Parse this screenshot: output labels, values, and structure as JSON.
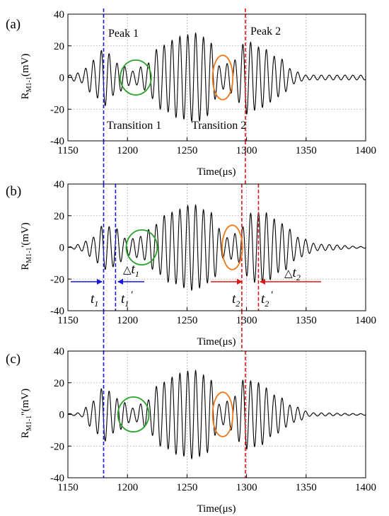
{
  "figure": {
    "panels": [
      {
        "label": "(a)",
        "ylabel": {
          "main": "R",
          "sub": "M1-1",
          "suffix": "(mV)"
        },
        "xlabel": "Time(μs)",
        "annotations": [
          {
            "text": "Peak 1",
            "color": "#1515e0"
          },
          {
            "text": "Peak 2",
            "color": "#e01515"
          },
          {
            "text": "Transition 1",
            "color": "#2aa52a"
          },
          {
            "text": "Transition 2",
            "color": "#f07818"
          }
        ]
      },
      {
        "label": "(b)",
        "ylabel": {
          "main": "R",
          "sub": "M1-1",
          "suffix": "'(mV)"
        },
        "xlabel": "Time(μs)",
        "time_marks": [
          {
            "t": "t",
            "sub": "1",
            "prime": "",
            "color": "#1515e0"
          },
          {
            "t": "t",
            "sub": "1",
            "prime": "'",
            "color": "#1515e0"
          },
          {
            "t": "t",
            "sub": "2",
            "prime": "",
            "color": "#e01515"
          },
          {
            "t": "t",
            "sub": "2",
            "prime": "'",
            "color": "#e01515"
          }
        ],
        "deltas": [
          {
            "sym": "△",
            "t": "t",
            "sub": "1",
            "color": "#1515e0"
          },
          {
            "sym": "△",
            "t": "t",
            "sub": "2",
            "color": "#e01515"
          }
        ]
      },
      {
        "label": "(c)",
        "ylabel": {
          "main": "R",
          "sub": "M1-1",
          "suffix": "''(mV)"
        },
        "xlabel": "Time(μs)"
      }
    ]
  },
  "chart_data": [
    {
      "type": "line",
      "panel": "(a)",
      "xlabel": "Time(μs)",
      "ylabel": "RM1-1(mV)",
      "xlim": [
        1150,
        1400
      ],
      "ylim": [
        -40,
        40
      ],
      "xticks": [
        1150,
        1200,
        1250,
        1300,
        1350,
        1400
      ],
      "yticks": [
        -40,
        -20,
        0,
        20,
        40
      ],
      "grid": true,
      "signal": {
        "start": 1150,
        "end": 1400,
        "carrier_period_us": 6.6,
        "envelope": [
          [
            1150,
            1.5
          ],
          [
            1160,
            3
          ],
          [
            1172,
            11
          ],
          [
            1180,
            18
          ],
          [
            1192,
            9
          ],
          [
            1205,
            4
          ],
          [
            1215,
            8
          ],
          [
            1228,
            20
          ],
          [
            1245,
            26
          ],
          [
            1258,
            28
          ],
          [
            1268,
            24
          ],
          [
            1278,
            7
          ],
          [
            1288,
            10
          ],
          [
            1300,
            23
          ],
          [
            1312,
            19
          ],
          [
            1328,
            12
          ],
          [
            1340,
            4
          ],
          [
            1350,
            1.5
          ],
          [
            1400,
            1.5
          ]
        ]
      },
      "vlines": [
        {
          "x": 1180,
          "color": "#1515e0"
        },
        {
          "x": 1299,
          "color": "#e01515"
        }
      ],
      "ellipses": [
        {
          "cx": 1207,
          "cy": 0,
          "rx": 13,
          "ry": 11,
          "color": "#2aa52a"
        },
        {
          "cx": 1280,
          "cy": 0,
          "rx": 8.5,
          "ry": 14,
          "color": "#f07818"
        }
      ]
    },
    {
      "type": "line",
      "panel": "(b)",
      "xlabel": "Time(μs)",
      "ylabel": "RM1-1'(mV)",
      "xlim": [
        1150,
        1400
      ],
      "ylim": [
        -40,
        40
      ],
      "xticks": [
        1150,
        1200,
        1250,
        1300,
        1350,
        1400
      ],
      "yticks": [
        -40,
        -20,
        0,
        20,
        40
      ],
      "grid": true,
      "signal": {
        "start": 1150,
        "end": 1400,
        "carrier_period_us": 6.6,
        "envelope": [
          [
            1150,
            0.2
          ],
          [
            1160,
            2
          ],
          [
            1170,
            6
          ],
          [
            1180,
            14
          ],
          [
            1190,
            12
          ],
          [
            1200,
            5
          ],
          [
            1212,
            7
          ],
          [
            1222,
            14
          ],
          [
            1235,
            22
          ],
          [
            1255,
            27
          ],
          [
            1270,
            22
          ],
          [
            1282,
            6
          ],
          [
            1292,
            9
          ],
          [
            1305,
            22
          ],
          [
            1315,
            22
          ],
          [
            1330,
            15
          ],
          [
            1345,
            6
          ],
          [
            1360,
            2
          ],
          [
            1400,
            0.5
          ]
        ]
      },
      "vlines": [
        {
          "x": 1180,
          "color": "#1515e0"
        },
        {
          "x": 1190,
          "color": "#1515e0"
        },
        {
          "x": 1296,
          "color": "#e01515"
        },
        {
          "x": 1310,
          "color": "#e01515"
        }
      ],
      "ellipses": [
        {
          "cx": 1212,
          "cy": 0,
          "rx": 13,
          "ry": 11,
          "color": "#2aa52a"
        },
        {
          "cx": 1288,
          "cy": 0,
          "rx": 8.5,
          "ry": 14,
          "color": "#f07818"
        }
      ]
    },
    {
      "type": "line",
      "panel": "(c)",
      "xlabel": "Time(μs)",
      "ylabel": "RM1-1''(mV)",
      "xlim": [
        1150,
        1400
      ],
      "ylim": [
        -40,
        40
      ],
      "xticks": [
        1150,
        1200,
        1250,
        1300,
        1350,
        1400
      ],
      "yticks": [
        -40,
        -20,
        0,
        20,
        40
      ],
      "grid": true,
      "signal": {
        "start": 1150,
        "end": 1400,
        "carrier_period_us": 6.6,
        "envelope": [
          [
            1150,
            0.5
          ],
          [
            1160,
            1
          ],
          [
            1170,
            8
          ],
          [
            1180,
            17
          ],
          [
            1192,
            10
          ],
          [
            1205,
            4
          ],
          [
            1215,
            8
          ],
          [
            1228,
            20
          ],
          [
            1245,
            26
          ],
          [
            1255,
            28
          ],
          [
            1268,
            24
          ],
          [
            1278,
            6
          ],
          [
            1288,
            10
          ],
          [
            1298,
            22
          ],
          [
            1310,
            20
          ],
          [
            1325,
            12
          ],
          [
            1340,
            5
          ],
          [
            1355,
            1
          ],
          [
            1400,
            0.5
          ]
        ]
      },
      "vlines": [
        {
          "x": 1180,
          "color": "#1515e0"
        },
        {
          "x": 1299,
          "color": "#e01515"
        }
      ],
      "ellipses": [
        {
          "cx": 1205,
          "cy": 0,
          "rx": 13,
          "ry": 11,
          "color": "#2aa52a"
        },
        {
          "cx": 1280,
          "cy": 0,
          "rx": 8.5,
          "ry": 14,
          "color": "#f07818"
        }
      ]
    }
  ]
}
